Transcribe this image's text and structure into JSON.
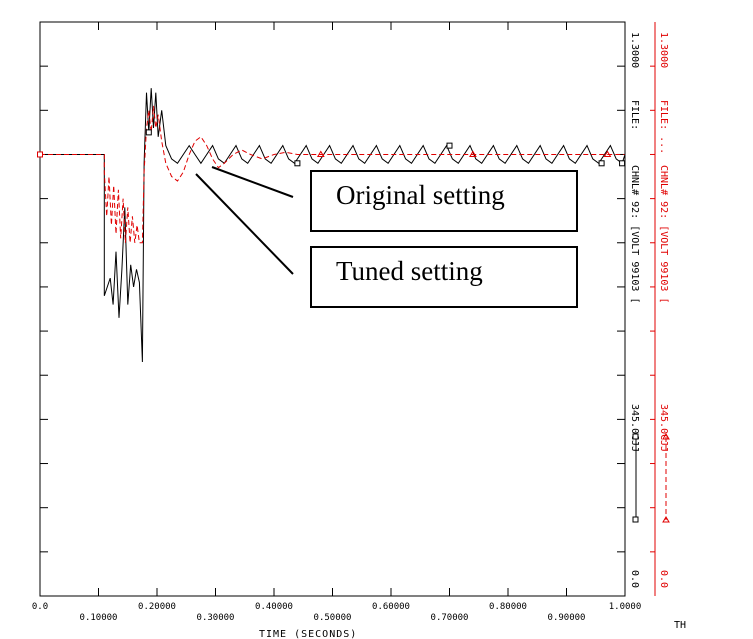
{
  "chart_data": {
    "type": "line",
    "xlabel": "TIME (SECONDS)",
    "xlim": [
      0.0,
      1.0
    ],
    "x_ticks_upper": [
      "0.0",
      "0.20000",
      "0.40000",
      "0.60000",
      "0.80000",
      "1.0000"
    ],
    "x_ticks_lower": [
      "0.10000",
      "0.30000",
      "0.50000",
      "0.70000",
      "0.90000"
    ],
    "series": [
      {
        "color": "#000000",
        "style": "solid",
        "points": [
          [
            0.0,
            1.0
          ],
          [
            0.11,
            1.0
          ],
          [
            0.11,
            0.68
          ],
          [
            0.12,
            0.72
          ],
          [
            0.125,
            0.66
          ],
          [
            0.13,
            0.78
          ],
          [
            0.135,
            0.63
          ],
          [
            0.14,
            0.74
          ],
          [
            0.145,
            0.88
          ],
          [
            0.15,
            0.66
          ],
          [
            0.155,
            0.75
          ],
          [
            0.16,
            0.7
          ],
          [
            0.165,
            0.74
          ],
          [
            0.17,
            0.71
          ],
          [
            0.175,
            0.53
          ],
          [
            0.178,
            0.98
          ],
          [
            0.182,
            1.14
          ],
          [
            0.186,
            1.05
          ],
          [
            0.19,
            1.15
          ],
          [
            0.194,
            1.06
          ],
          [
            0.198,
            1.14
          ],
          [
            0.202,
            1.04
          ],
          [
            0.208,
            1.1
          ],
          [
            0.215,
            1.02
          ],
          [
            0.225,
            0.99
          ],
          [
            0.235,
            0.98
          ],
          [
            0.245,
            1.0
          ],
          [
            0.255,
            1.02
          ],
          [
            0.265,
            1.0
          ],
          [
            0.275,
            0.98
          ],
          [
            0.285,
            1.0
          ],
          [
            0.295,
            1.02
          ],
          [
            0.305,
            0.99
          ],
          [
            0.315,
            0.98
          ],
          [
            0.325,
            1.0
          ],
          [
            0.335,
            1.02
          ],
          [
            0.345,
            0.99
          ],
          [
            0.355,
            0.98
          ],
          [
            0.365,
            1.0
          ],
          [
            0.375,
            1.02
          ],
          [
            0.385,
            0.99
          ],
          [
            0.395,
            0.98
          ],
          [
            0.405,
            1.0
          ],
          [
            0.415,
            1.02
          ],
          [
            0.425,
            0.99
          ],
          [
            0.435,
            0.98
          ],
          [
            0.445,
            1.0
          ],
          [
            0.455,
            1.02
          ],
          [
            0.465,
            0.99
          ],
          [
            0.475,
            0.98
          ],
          [
            0.485,
            1.0
          ],
          [
            0.495,
            1.02
          ],
          [
            0.505,
            0.99
          ],
          [
            0.515,
            0.98
          ],
          [
            0.525,
            1.0
          ],
          [
            0.535,
            1.02
          ],
          [
            0.545,
            0.99
          ],
          [
            0.555,
            0.98
          ],
          [
            0.565,
            1.0
          ],
          [
            0.575,
            1.02
          ],
          [
            0.585,
            0.99
          ],
          [
            0.595,
            0.98
          ],
          [
            0.605,
            1.0
          ],
          [
            0.615,
            1.02
          ],
          [
            0.625,
            0.99
          ],
          [
            0.635,
            0.98
          ],
          [
            0.645,
            1.0
          ],
          [
            0.655,
            1.02
          ],
          [
            0.665,
            0.99
          ],
          [
            0.675,
            0.98
          ],
          [
            0.685,
            1.0
          ],
          [
            0.695,
            1.02
          ],
          [
            0.705,
            0.99
          ],
          [
            0.715,
            0.98
          ],
          [
            0.725,
            1.0
          ],
          [
            0.735,
            1.02
          ],
          [
            0.745,
            0.99
          ],
          [
            0.755,
            0.98
          ],
          [
            0.765,
            1.0
          ],
          [
            0.775,
            1.02
          ],
          [
            0.785,
            0.99
          ],
          [
            0.795,
            0.98
          ],
          [
            0.805,
            1.0
          ],
          [
            0.815,
            1.02
          ],
          [
            0.825,
            0.99
          ],
          [
            0.835,
            0.98
          ],
          [
            0.845,
            1.0
          ],
          [
            0.855,
            1.02
          ],
          [
            0.865,
            0.99
          ],
          [
            0.875,
            0.98
          ],
          [
            0.885,
            1.0
          ],
          [
            0.895,
            1.02
          ],
          [
            0.905,
            0.99
          ],
          [
            0.915,
            0.98
          ],
          [
            0.925,
            1.0
          ],
          [
            0.935,
            1.02
          ],
          [
            0.945,
            0.99
          ],
          [
            0.955,
            0.98
          ],
          [
            0.965,
            1.0
          ],
          [
            0.975,
            1.02
          ],
          [
            0.985,
            0.99
          ],
          [
            0.995,
            0.98
          ],
          [
            1.0,
            1.0
          ]
        ]
      },
      {
        "color": "#e00000",
        "style": "dashed",
        "points": [
          [
            0.0,
            1.0
          ],
          [
            0.11,
            1.0
          ],
          [
            0.11,
            0.96
          ],
          [
            0.114,
            0.86
          ],
          [
            0.118,
            0.95
          ],
          [
            0.122,
            0.84
          ],
          [
            0.126,
            0.93
          ],
          [
            0.13,
            0.82
          ],
          [
            0.134,
            0.92
          ],
          [
            0.138,
            0.81
          ],
          [
            0.142,
            0.9
          ],
          [
            0.146,
            0.8
          ],
          [
            0.15,
            0.88
          ],
          [
            0.154,
            0.8
          ],
          [
            0.158,
            0.86
          ],
          [
            0.162,
            0.8
          ],
          [
            0.166,
            0.84
          ],
          [
            0.17,
            0.8
          ],
          [
            0.175,
            0.8
          ],
          [
            0.178,
            0.96
          ],
          [
            0.182,
            1.06
          ],
          [
            0.186,
            1.1
          ],
          [
            0.19,
            1.05
          ],
          [
            0.194,
            1.11
          ],
          [
            0.198,
            1.06
          ],
          [
            0.202,
            1.09
          ],
          [
            0.208,
            1.03
          ],
          [
            0.215,
            0.98
          ],
          [
            0.225,
            0.95
          ],
          [
            0.235,
            0.94
          ],
          [
            0.245,
            0.96
          ],
          [
            0.255,
            1.0
          ],
          [
            0.265,
            1.03
          ],
          [
            0.275,
            1.04
          ],
          [
            0.285,
            1.02
          ],
          [
            0.295,
            0.99
          ],
          [
            0.305,
            0.97
          ],
          [
            0.315,
            0.98
          ],
          [
            0.33,
            1.0
          ],
          [
            0.345,
            1.01
          ],
          [
            0.36,
            1.0
          ],
          [
            0.38,
            0.99
          ],
          [
            0.4,
            1.0
          ],
          [
            0.42,
            1.005
          ],
          [
            0.44,
            1.0
          ],
          [
            0.5,
            1.0
          ],
          [
            0.6,
            1.0
          ],
          [
            0.7,
            1.0
          ],
          [
            0.8,
            1.0
          ],
          [
            0.9,
            1.0
          ],
          [
            1.0,
            1.0
          ]
        ]
      }
    ],
    "ylim": [
      0.0,
      1.3
    ],
    "right_axis": {
      "top_label": "1.3000",
      "bottom_label": "0.0",
      "file_label": "FILE:",
      "channel_label": "CHNL# 92: [VOLT  99103 [",
      "bus_label": "345.0CJJ"
    },
    "right_axis_red": {
      "top_label": "1.3000",
      "bottom_label": "0.0",
      "file_label": "FILE: ...",
      "channel_label": "CHNL# 92: [VOLT  99103 [",
      "bus_label": "345.0CJJ"
    }
  },
  "annotations": {
    "original": "Original setting",
    "tuned": "Tuned setting"
  },
  "corner_mark": "TH",
  "colors": {
    "series_black": "#000000",
    "series_red": "#e00000",
    "axis_red": "#e00000"
  }
}
